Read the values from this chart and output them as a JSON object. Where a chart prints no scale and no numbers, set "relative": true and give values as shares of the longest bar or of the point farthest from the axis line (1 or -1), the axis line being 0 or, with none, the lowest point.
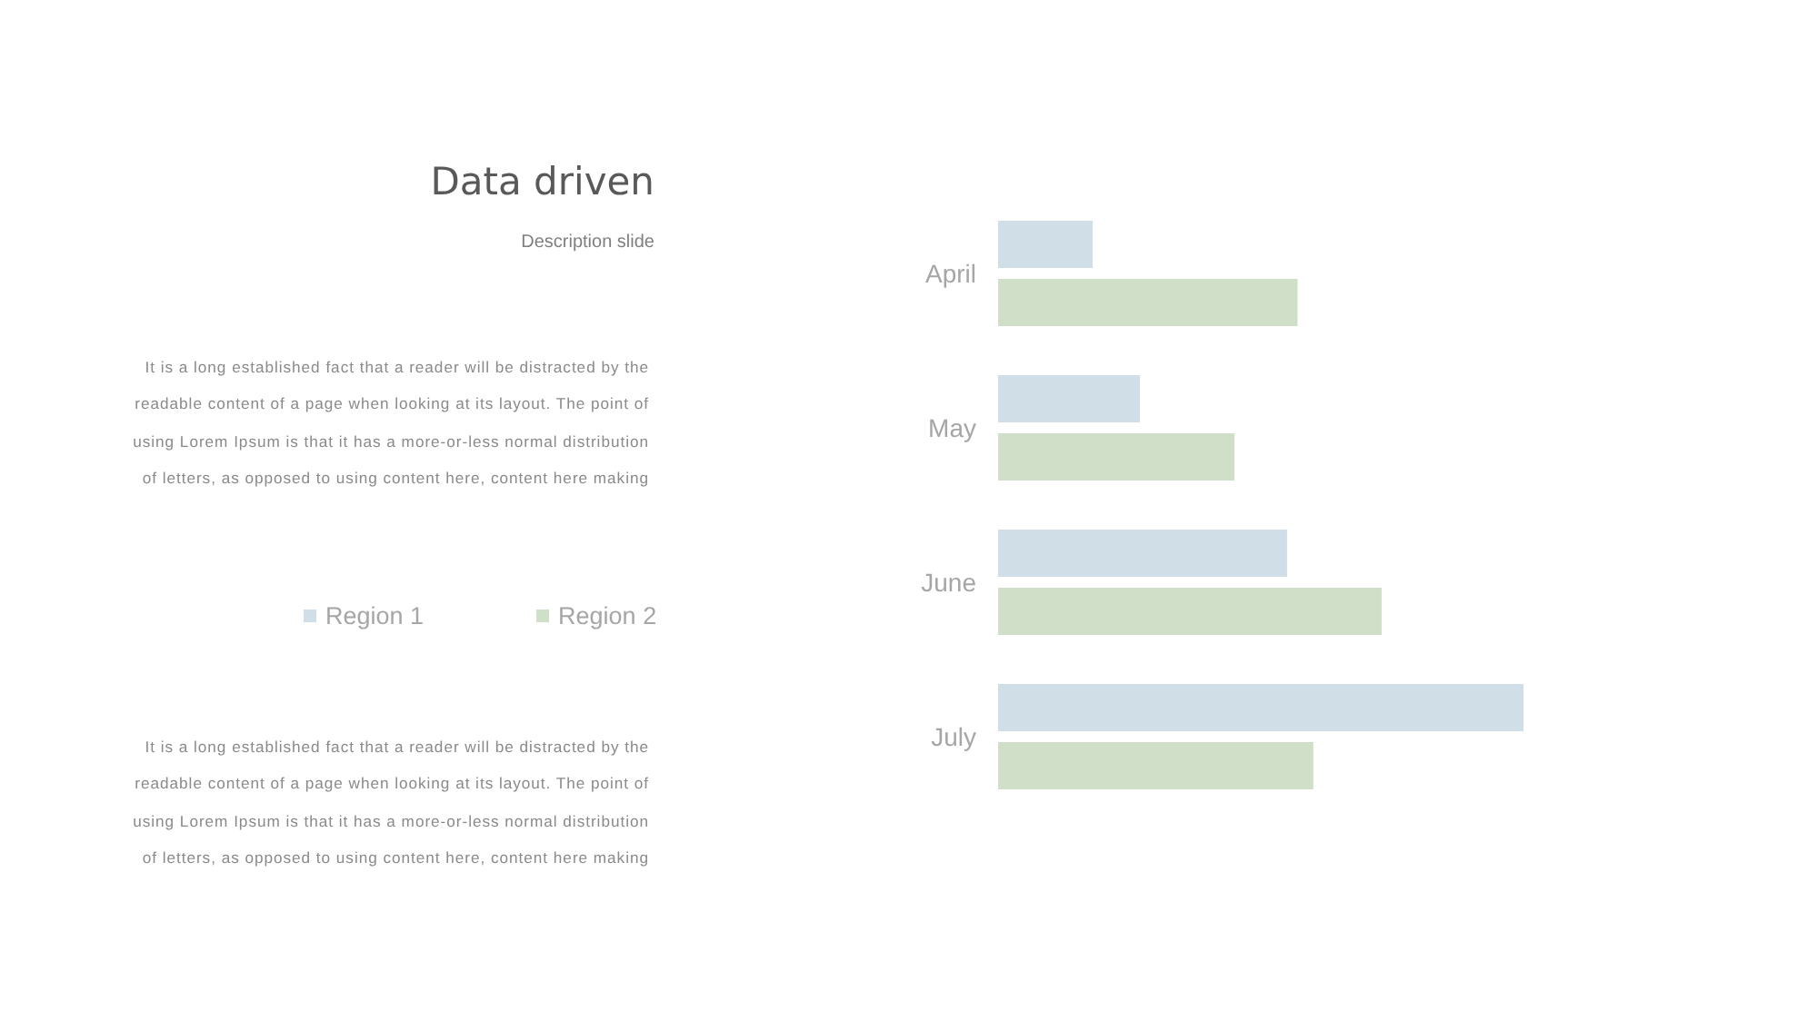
{
  "chart_data": {
    "type": "bar",
    "orientation": "horizontal",
    "relative": true,
    "title": "Data driven",
    "subtitle": "Description slide",
    "annotations": [
      "It is a long established fact that a reader will be distracted by the readable content of a page when looking at its layout. The point of using Lorem Ipsum is that it has a more-or-less normal distribution of letters, as opposed to using content here, content here making",
      "It is a long established fact that a reader will be distracted by the readable content of a page when looking at its layout. The point of using Lorem Ipsum is that it has a more-or-less normal distribution of letters, as opposed to using content here, content here making"
    ],
    "categories": [
      "April",
      "May",
      "June",
      "July"
    ],
    "series": [
      {
        "name": "Region 1",
        "color": "#cfdee7",
        "values": [
          0.18,
          0.27,
          0.55,
          1
        ]
      },
      {
        "name": "Region 2",
        "color": "#d0dfc8",
        "values": [
          0.57,
          0.45,
          0.73,
          0.6
        ]
      }
    ],
    "legend": "left"
  }
}
